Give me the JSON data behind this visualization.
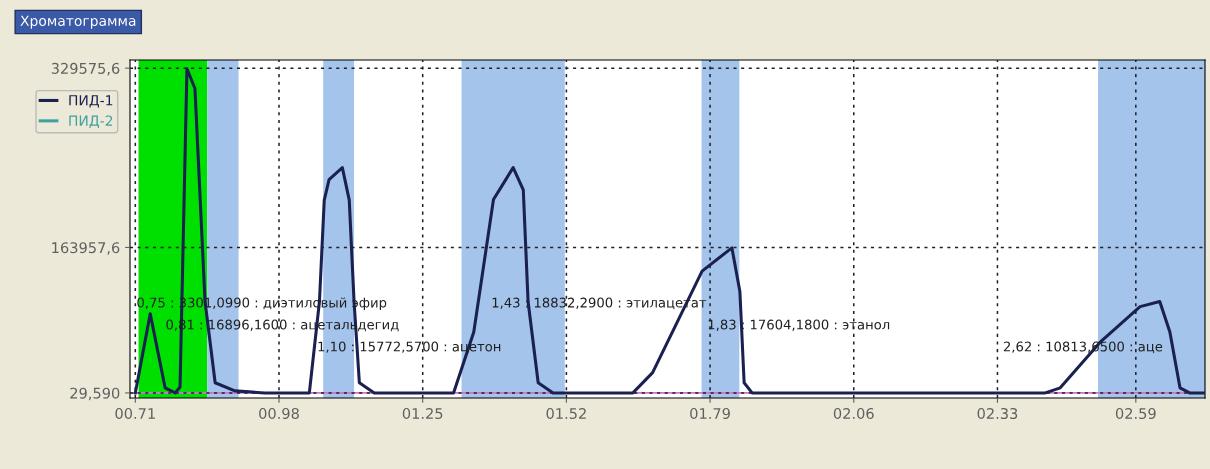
{
  "chart_data": {
    "type": "line",
    "title": "Хроматограмма",
    "xlim": [
      0.7,
      2.72
    ],
    "ylim": [
      24900,
      337100
    ],
    "xticks": [
      {
        "value": 0.71,
        "label": "00.71"
      },
      {
        "value": 0.98,
        "label": "00.98"
      },
      {
        "value": 1.25,
        "label": "01.25"
      },
      {
        "value": 1.52,
        "label": "01.52"
      },
      {
        "value": 1.79,
        "label": "01.79"
      },
      {
        "value": 2.06,
        "label": "02.06"
      },
      {
        "value": 2.33,
        "label": "02.33"
      },
      {
        "value": 2.59,
        "label": "02.59"
      }
    ],
    "yticks": [
      {
        "value": 29590,
        "label": "29,590"
      },
      {
        "value": 163957.6,
        "label": "163957,6"
      },
      {
        "value": 329575.6,
        "label": "329575,6"
      }
    ],
    "grid": true,
    "legend": "top left",
    "marker": "none",
    "line_style": "solid",
    "series": [
      {
        "name": "ПИД-1",
        "color": "#1a2050",
        "x": [
          0.71,
          0.738,
          0.766,
          0.785,
          0.794,
          0.807,
          0.822,
          0.841,
          0.86,
          0.897,
          0.953,
          1.037,
          1.056,
          1.065,
          1.074,
          1.099,
          1.112,
          1.121,
          1.131,
          1.159,
          1.308,
          1.346,
          1.383,
          1.42,
          1.439,
          1.448,
          1.467,
          1.495,
          1.645,
          1.682,
          1.775,
          1.831,
          1.846,
          1.854,
          1.869,
          2.42,
          2.448,
          2.523,
          2.598,
          2.635,
          2.654,
          2.673,
          2.691,
          2.717
        ],
        "values": [
          29590,
          102700,
          34300,
          29590,
          35000,
          329000,
          310800,
          114000,
          39000,
          31500,
          29590,
          29590,
          114000,
          207700,
          226500,
          237700,
          207700,
          114000,
          39000,
          29590,
          29590,
          85800,
          208300,
          237700,
          217100,
          114000,
          39000,
          29590,
          29590,
          48300,
          142100,
          163600,
          123300,
          39000,
          29590,
          29590,
          34300,
          76500,
          109300,
          114000,
          85800,
          34300,
          29590,
          29590
        ]
      },
      {
        "name": "ПИД-2",
        "color": "#40a0a0"
      }
    ],
    "bands": [
      {
        "axis": "x",
        "from": 0.716,
        "to": 0.845,
        "color": "#00e000"
      },
      {
        "axis": "x",
        "from": 0.845,
        "to": 0.904,
        "color": "#a4c4ec"
      },
      {
        "axis": "x",
        "from": 1.063,
        "to": 1.121,
        "color": "#a4c4ec"
      },
      {
        "axis": "x",
        "from": 1.323,
        "to": 1.517,
        "color": "#a4c4ec"
      },
      {
        "axis": "x",
        "from": 1.774,
        "to": 1.845,
        "color": "#a4c4ec"
      },
      {
        "axis": "x",
        "from": 2.519,
        "to": 2.72,
        "color": "#a4c4ec"
      }
    ],
    "ref_lines": [
      {
        "axis": "y",
        "value": 29590,
        "color": "#d070d0"
      }
    ],
    "annotations": [
      "0,75 : 3301,0990 : диэтиловый эфир",
      "0,81 : 16896,1600 : ацетальдегид",
      "1,10 : 15772,5700 : ацетон",
      "1,43 : 18832,2900 : этилацетат",
      "1,83 : 17604,1800 : этанол",
      "2,62 : 10813,6500 : аце"
    ]
  }
}
